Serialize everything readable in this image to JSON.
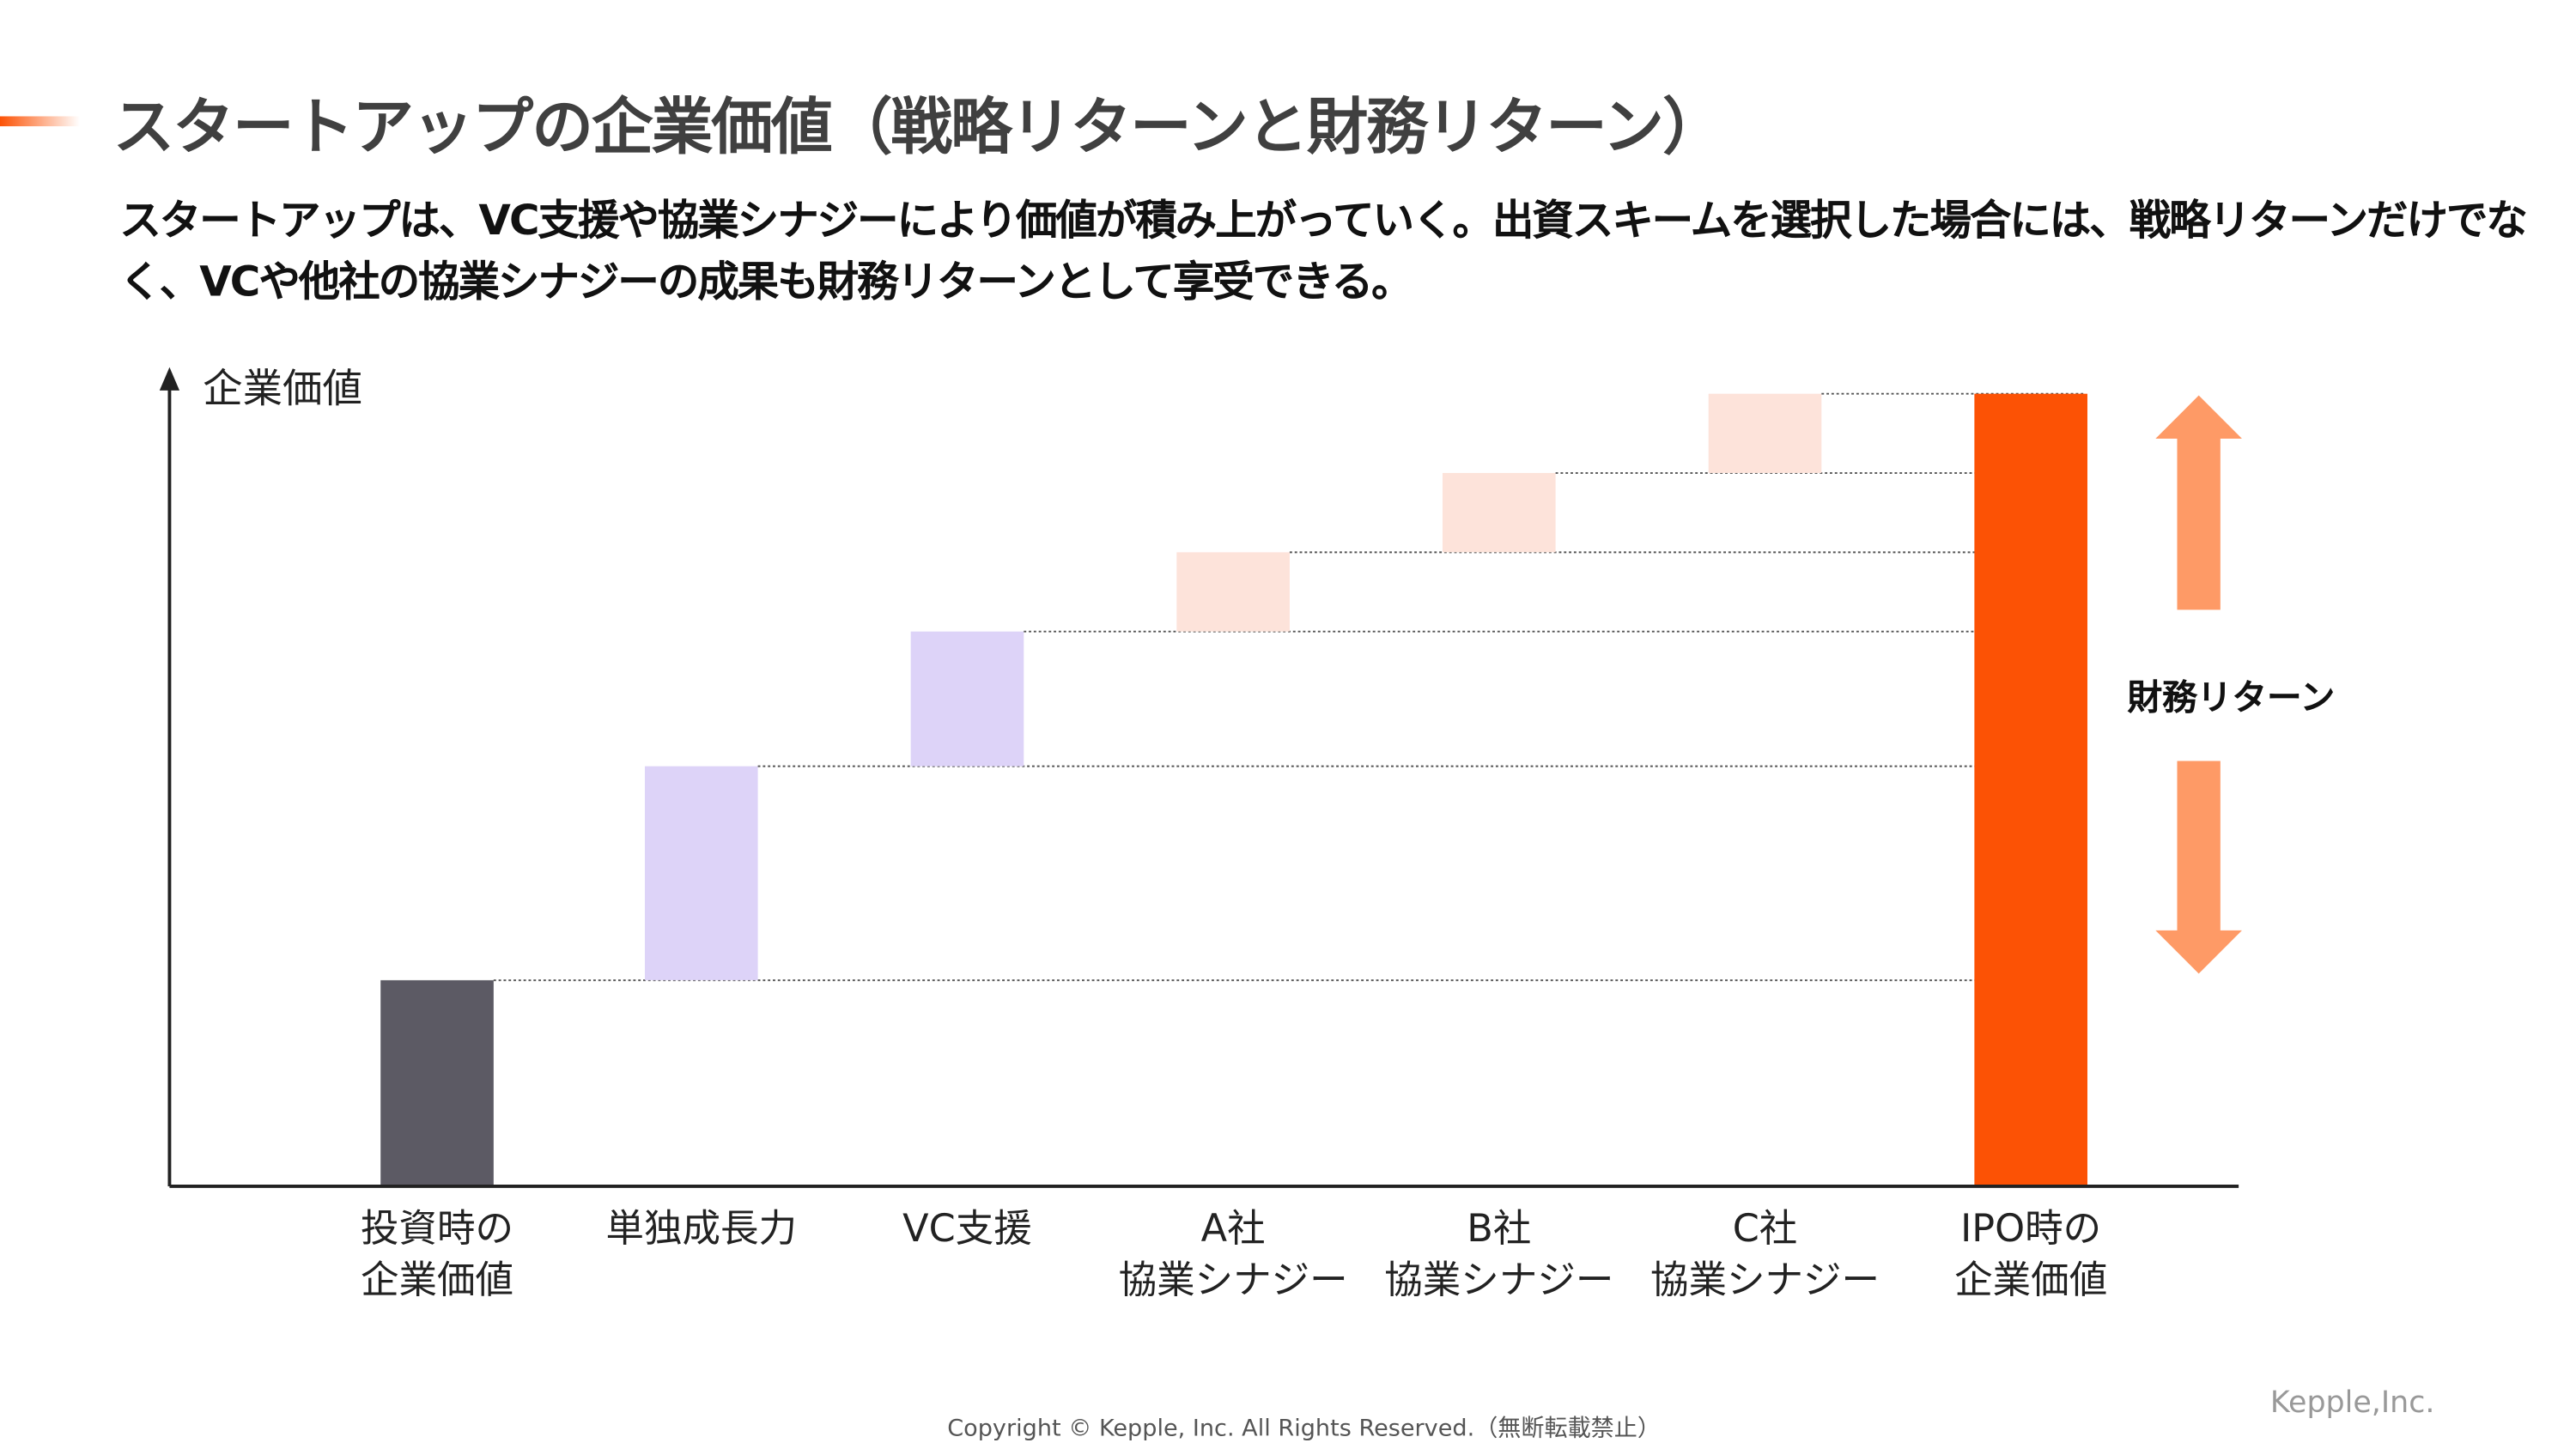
{
  "title": "スタートアップの企業価値（戦略リターンと財務リターン）",
  "subtitle": "スタートアップは、VC支援や協業シナジーにより価値が積み上がっていく。出資スキームを選択した場合には、戦略リターンだけでなく、VCや他社の協業シナジーの成果も財務リターンとして享受できる。",
  "footer": {
    "copyright": "Copyright © Kepple, Inc. All Rights Reserved.（無断転載禁止）",
    "brand": "Kepple,Inc."
  },
  "chart_data": {
    "type": "waterfall",
    "ylabel": "企業価値",
    "categories": [
      {
        "line1": "投資時の",
        "line2": "企業価値"
      },
      {
        "line1": "単独成長力",
        "line2": ""
      },
      {
        "line1": "VC支援",
        "line2": ""
      },
      {
        "line1": "A社",
        "line2": "協業シナジー"
      },
      {
        "line1": "B社",
        "line2": "協業シナジー"
      },
      {
        "line1": "C社",
        "line2": "協業シナジー"
      },
      {
        "line1": "IPO時の",
        "line2": "企業価値"
      }
    ],
    "values": [
      26,
      27,
      17,
      10,
      10,
      10,
      100
    ],
    "kinds": [
      "base",
      "increase",
      "increase",
      "increase",
      "increase",
      "increase",
      "total"
    ],
    "colors": [
      "#5c5a64",
      "#ddd3f8",
      "#ddd3f8",
      "#fde3da",
      "#fde3da",
      "#fde3da",
      "#fc5205"
    ],
    "annotation": {
      "label": "財務リターン",
      "arrow_color": "#fe9a66"
    },
    "grid": false
  }
}
